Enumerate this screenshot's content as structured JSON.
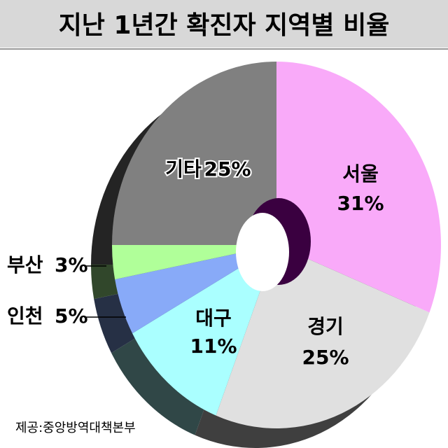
{
  "chart_data": {
    "type": "pie",
    "title": "지난 1년간 확진자 지역별 비율",
    "categories": [
      "서울",
      "경기",
      "대구",
      "인천",
      "부산",
      "기타"
    ],
    "values": [
      31,
      25,
      11,
      5,
      3,
      25
    ],
    "value_labels": [
      "31%",
      "25%",
      "11%",
      "5%",
      "3%",
      "25%"
    ],
    "colors": [
      "#f9aaf9",
      "#e0e0e0",
      "#aaffff",
      "#88aaf8",
      "#b0ff99",
      "#808080"
    ],
    "source": "제공:중앙방역대책본부"
  }
}
